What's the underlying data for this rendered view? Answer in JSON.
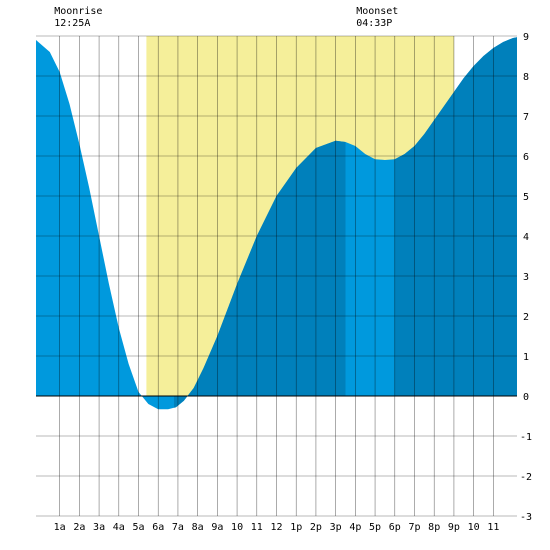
{
  "moon_events": {
    "moonrise": {
      "label": "Moonrise",
      "time": "12:25A",
      "hour": 0.42
    },
    "moonset": {
      "label": "Moonset",
      "time": "04:33P",
      "hour": 16.55
    }
  },
  "chart_data": {
    "type": "area",
    "title": "",
    "xlabel": "",
    "ylabel": "",
    "xlim": [
      -0.2,
      24.2
    ],
    "ylim": [
      -3,
      9
    ],
    "grid": true,
    "x_tick_labels": [
      "1a",
      "2a",
      "3a",
      "4a",
      "5a",
      "6a",
      "7a",
      "8a",
      "9a",
      "10",
      "11",
      "12",
      "1p",
      "2p",
      "3p",
      "4p",
      "5p",
      "6p",
      "7p",
      "8p",
      "9p",
      "10",
      "11"
    ],
    "x_tick_hours": [
      1,
      2,
      3,
      4,
      5,
      6,
      7,
      8,
      9,
      10,
      11,
      12,
      13,
      14,
      15,
      16,
      17,
      18,
      19,
      20,
      21,
      22,
      23
    ],
    "y_ticks": [
      -3,
      -2,
      -1,
      0,
      1,
      2,
      3,
      4,
      5,
      6,
      7,
      8,
      9
    ],
    "daylight": {
      "start": 5.4,
      "end": 21.0,
      "color": "#f5ef9a"
    },
    "colors": {
      "light": "#0099dd",
      "dark": "#0080bb",
      "grid": "#000000"
    },
    "dark_bands": [
      [
        6.8,
        15.5
      ],
      [
        18.0,
        24.2
      ]
    ],
    "series": [
      {
        "x": [
          -0.2,
          0.5,
          1.0,
          1.5,
          2.0,
          2.5,
          3.0,
          3.5,
          4.0,
          4.5,
          5.0,
          5.5,
          6.0,
          6.5,
          6.9,
          7.3,
          7.8,
          8.3,
          9.0,
          10.0,
          11.0,
          12.0,
          13.0,
          14.0,
          15.0,
          15.5,
          16.0,
          16.5,
          17.0,
          17.5,
          18.0,
          18.5,
          19.0,
          19.5,
          20.0,
          20.5,
          21.0,
          21.5,
          22.0,
          22.5,
          23.0,
          23.5,
          24.0,
          24.2
        ],
        "y": [
          8.9,
          8.6,
          8.1,
          7.3,
          6.3,
          5.2,
          4.0,
          2.8,
          1.7,
          0.8,
          0.1,
          -0.2,
          -0.33,
          -0.33,
          -0.28,
          -0.12,
          0.2,
          0.7,
          1.5,
          2.8,
          4.0,
          5.0,
          5.7,
          6.2,
          6.38,
          6.35,
          6.25,
          6.05,
          5.92,
          5.9,
          5.92,
          6.05,
          6.25,
          6.55,
          6.9,
          7.25,
          7.6,
          7.95,
          8.25,
          8.5,
          8.7,
          8.85,
          8.95,
          8.97
        ]
      }
    ]
  }
}
